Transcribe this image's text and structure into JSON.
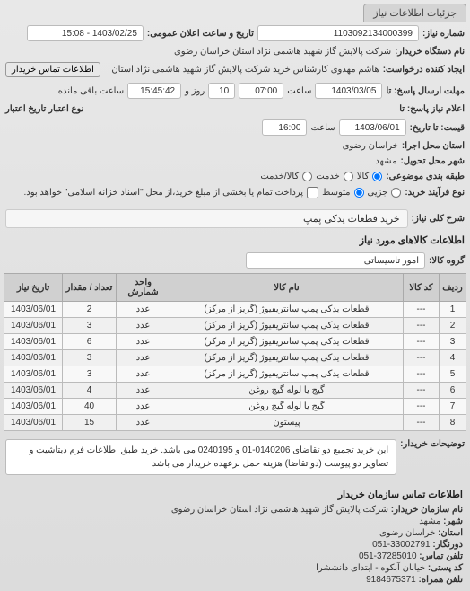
{
  "header_tab": "جزئیات اطلاعات نیاز",
  "fields": {
    "req_number_label": "شماره نیاز:",
    "req_number": "1103092134000399",
    "announce_label": "تاریخ و ساعت اعلان عمومی:",
    "announce": "1403/02/25 - 15:08",
    "buyer_label": "نام دستگاه خریدار:",
    "buyer": "شرکت پالایش گاز شهید هاشمی نژاد   استان خراسان رضوی",
    "requester_label": "ایجاد کننده درخواست:",
    "requester": "هاشم مهدوی کارشناس خرید شرکت پالایش گاز شهید هاشمی نژاد   استان",
    "contact_btn": "اطلاعات تماس خریدار",
    "deadline_label": "مهلت ارسال پاسخ: تا",
    "deadline_date": "1403/03/05",
    "saat": "ساعت",
    "deadline_time": "07:00",
    "day_label": "روز و",
    "day_count": "10",
    "remain_time": "15:45:42",
    "remain_label": "ساعت باقی مانده",
    "reply_until_label": "اعلام نیاز پاسخ: تا",
    "credit_label": "نوع اعتبار تاریخ اعتبار",
    "quote_label": "قیمت: تا تاریخ:",
    "quote_date": "1403/06/01",
    "quote_time": "16:00",
    "exec_label": "استان محل اجرا:",
    "exec_value": "خراسان رضوی",
    "delivery_city_label": "شهر محل تحویل:",
    "delivery_city": "مشهد",
    "budget_label": "طبقه بندی موضوعی:",
    "budget_o1": "کالا",
    "budget_o2": "خدمت",
    "budget_o3": "کالا/خدمت",
    "process_label": "نوع فرآیند خرید:",
    "process_o1": "جزیی",
    "process_o2": "متوسط",
    "process_note": "پرداخت تمام یا بخشی از مبلغ خرید،از محل \"اسناد خزانه اسلامی\" خواهد بود.",
    "need_desc_label": "شرح کلی نیاز:",
    "need_desc": "خرید قطعات یدکی پمپ",
    "items_title": "اطلاعات کالاهای مورد نیاز",
    "group_label": "گروه کالا:",
    "group": "امور تاسیساتی",
    "buyer_notes_label": "توضیحات خریدار:",
    "buyer_notes": "این خرید تجمیع دو تقاضای 0140206-01 و 0240195 می باشد. خرید طبق اطلاعات فرم دیتاشیت و تصاویر دو پیوست (دو تقاضا) هزینه حمل برعهده خریدار می باشد",
    "contact_title": "اطلاعات تماس سازمان خریدار",
    "org_name_label": "نام سازمان خریدار:",
    "org_name": "شرکت پالایش گاز شهید هاشمی نژاد استان خراسان رضوی",
    "city_label": "شهر:",
    "city": "مشهد",
    "province_label": "استان:",
    "province": "خراسان رضوی",
    "phone_label": "دورنگار:",
    "phone": "33002791-051",
    "tel_label": "تلفن تماس:",
    "tel": "37285010-051",
    "postal_label": "کد پستی:",
    "postal": "خیابان آبکوه - ابتدای دانششرا",
    "fax_label": "تلفن همراه:",
    "fax": "9184675371"
  },
  "table": {
    "headers": [
      "ردیف",
      "کد کالا",
      "نام کالا",
      "واحد شمارش",
      "تعداد / مقدار",
      "تاریخ نیاز"
    ],
    "rows": [
      [
        "1",
        "---",
        "قطعات یدکی پمپ سانتریفیوژ (گریز از مرکز)",
        "عدد",
        "2",
        "1403/06/01"
      ],
      [
        "2",
        "---",
        "قطعات یدکی پمپ سانتریفیوژ (گریز از مرکز)",
        "عدد",
        "3",
        "1403/06/01"
      ],
      [
        "3",
        "---",
        "قطعات یدکی پمپ سانتریفیوژ (گریز از مرکز)",
        "عدد",
        "6",
        "1403/06/01"
      ],
      [
        "4",
        "---",
        "قطعات یدکی پمپ سانتریفیوژ (گریز از مرکز)",
        "عدد",
        "3",
        "1403/06/01"
      ],
      [
        "5",
        "---",
        "قطعات یدکی پمپ سانتریفیوژ (گریز از مرکز)",
        "عدد",
        "3",
        "1403/06/01"
      ],
      [
        "6",
        "---",
        "گیج یا لوله گیج روغن",
        "عدد",
        "4",
        "1403/06/01"
      ],
      [
        "7",
        "---",
        "گیج یا لوله گیج روغن",
        "عدد",
        "40",
        "1403/06/01"
      ],
      [
        "8",
        "---",
        "پیستون",
        "عدد",
        "15",
        "1403/06/01"
      ]
    ]
  },
  "colors": {
    "bg": "#e8e8e8",
    "border": "#bbb",
    "th_bg": "#d0d0d0"
  }
}
